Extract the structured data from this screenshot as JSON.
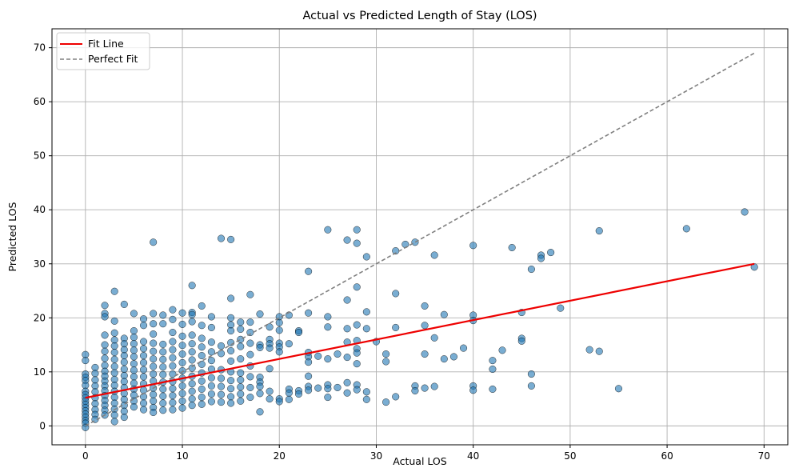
{
  "chart_data": {
    "type": "scatter",
    "title": "Actual vs Predicted Length of Stay (LOS)",
    "xlabel": "Actual LOS",
    "ylabel": "Predicted LOS",
    "xlim": [
      -3.45,
      72.45
    ],
    "ylim": [
      -3.5,
      73.5
    ],
    "xticks": [
      0,
      10,
      20,
      30,
      40,
      50,
      60,
      70
    ],
    "yticks": [
      0,
      10,
      20,
      30,
      40,
      50,
      60,
      70
    ],
    "grid": true,
    "legend_position": "top-left",
    "legend": [
      "Fit Line",
      "Perfect Fit"
    ],
    "colors": {
      "points": "#1f77b4",
      "fit_line": "#ee0000",
      "perfect_fit": "#808080",
      "grid": "#b0b0b0"
    },
    "fit_line": {
      "name": "Fit Line",
      "x": [
        0,
        69
      ],
      "y": [
        5.2,
        30.0
      ]
    },
    "perfect_fit": {
      "name": "Perfect Fit",
      "x": [
        0,
        69
      ],
      "y": [
        0,
        69
      ]
    },
    "points": [
      [
        0,
        13.2
      ],
      [
        0,
        12.1
      ],
      [
        0,
        9.6
      ],
      [
        0,
        9.0
      ],
      [
        0,
        8.4
      ],
      [
        0,
        7.5
      ],
      [
        0,
        6.4
      ],
      [
        0,
        5.8
      ],
      [
        0,
        5.2
      ],
      [
        0,
        4.6
      ],
      [
        0,
        4.0
      ],
      [
        0,
        3.4
      ],
      [
        0,
        2.8
      ],
      [
        0,
        2.2
      ],
      [
        0,
        1.6
      ],
      [
        0,
        1.0
      ],
      [
        0,
        0.5
      ],
      [
        0,
        -0.3
      ],
      [
        1,
        10.8
      ],
      [
        1,
        9.7
      ],
      [
        1,
        8.5
      ],
      [
        1,
        7.4
      ],
      [
        1,
        6.3
      ],
      [
        1,
        5.2
      ],
      [
        1,
        4.1
      ],
      [
        1,
        3.0
      ],
      [
        1,
        2.1
      ],
      [
        1,
        1.2
      ],
      [
        2,
        22.3
      ],
      [
        2,
        20.8
      ],
      [
        2,
        20.2
      ],
      [
        2,
        16.8
      ],
      [
        2,
        15.0
      ],
      [
        2,
        13.8
      ],
      [
        2,
        12.5
      ],
      [
        2,
        11.2
      ],
      [
        2,
        10.1
      ],
      [
        2,
        9.2
      ],
      [
        2,
        8.3
      ],
      [
        2,
        7.4
      ],
      [
        2,
        6.5
      ],
      [
        2,
        5.6
      ],
      [
        2,
        4.7
      ],
      [
        2,
        3.8
      ],
      [
        2,
        2.9
      ],
      [
        2,
        2.0
      ],
      [
        3,
        24.9
      ],
      [
        3,
        19.4
      ],
      [
        3,
        17.2
      ],
      [
        3,
        15.9
      ],
      [
        3,
        14.8
      ],
      [
        3,
        13.6
      ],
      [
        3,
        12.3
      ],
      [
        3,
        11.0
      ],
      [
        3,
        9.8
      ],
      [
        3,
        8.6
      ],
      [
        3,
        7.5
      ],
      [
        3,
        6.4
      ],
      [
        3,
        5.3
      ],
      [
        3,
        4.2
      ],
      [
        3,
        3.1
      ],
      [
        3,
        2.0
      ],
      [
        3,
        0.8
      ],
      [
        4,
        22.5
      ],
      [
        4,
        16.2
      ],
      [
        4,
        15.2
      ],
      [
        4,
        14.1
      ],
      [
        4,
        13.0
      ],
      [
        4,
        11.8
      ],
      [
        4,
        10.5
      ],
      [
        4,
        9.3
      ],
      [
        4,
        8.2
      ],
      [
        4,
        7.1
      ],
      [
        4,
        6.0
      ],
      [
        4,
        4.9
      ],
      [
        4,
        3.8
      ],
      [
        4,
        2.7
      ],
      [
        4,
        1.6
      ],
      [
        5,
        20.8
      ],
      [
        5,
        17.6
      ],
      [
        5,
        16.4
      ],
      [
        5,
        15.2
      ],
      [
        5,
        14.0
      ],
      [
        5,
        12.8
      ],
      [
        5,
        11.5
      ],
      [
        5,
        10.3
      ],
      [
        5,
        9.1
      ],
      [
        5,
        7.9
      ],
      [
        5,
        6.8
      ],
      [
        5,
        5.7
      ],
      [
        5,
        4.6
      ],
      [
        5,
        3.5
      ],
      [
        6,
        19.8
      ],
      [
        6,
        18.6
      ],
      [
        6,
        15.6
      ],
      [
        6,
        14.3
      ],
      [
        6,
        13.0
      ],
      [
        6,
        11.7
      ],
      [
        6,
        10.4
      ],
      [
        6,
        9.1
      ],
      [
        6,
        7.8
      ],
      [
        6,
        6.6
      ],
      [
        6,
        5.4
      ],
      [
        6,
        4.2
      ],
      [
        6,
        3.0
      ],
      [
        7,
        34.0
      ],
      [
        7,
        20.8
      ],
      [
        7,
        18.9
      ],
      [
        7,
        17.0
      ],
      [
        7,
        15.3
      ],
      [
        7,
        13.8
      ],
      [
        7,
        12.4
      ],
      [
        7,
        11.0
      ],
      [
        7,
        9.6
      ],
      [
        7,
        8.3
      ],
      [
        7,
        7.0
      ],
      [
        7,
        5.8
      ],
      [
        7,
        4.6
      ],
      [
        7,
        3.4
      ],
      [
        7,
        2.5
      ],
      [
        8,
        20.5
      ],
      [
        8,
        18.9
      ],
      [
        8,
        15.1
      ],
      [
        8,
        13.7
      ],
      [
        8,
        12.3
      ],
      [
        8,
        10.9
      ],
      [
        8,
        9.5
      ],
      [
        8,
        8.1
      ],
      [
        8,
        6.8
      ],
      [
        8,
        5.5
      ],
      [
        8,
        4.2
      ],
      [
        8,
        2.9
      ],
      [
        9,
        21.5
      ],
      [
        9,
        19.7
      ],
      [
        9,
        17.3
      ],
      [
        9,
        15.6
      ],
      [
        9,
        14.1
      ],
      [
        9,
        12.6
      ],
      [
        9,
        11.1
      ],
      [
        9,
        9.6
      ],
      [
        9,
        8.2
      ],
      [
        9,
        6.9
      ],
      [
        9,
        5.6
      ],
      [
        9,
        4.3
      ],
      [
        9,
        3.0
      ],
      [
        10,
        20.9
      ],
      [
        10,
        18.8
      ],
      [
        10,
        16.6
      ],
      [
        10,
        14.9
      ],
      [
        10,
        13.3
      ],
      [
        10,
        11.7
      ],
      [
        10,
        10.2
      ],
      [
        10,
        8.8
      ],
      [
        10,
        7.4
      ],
      [
        10,
        6.0
      ],
      [
        10,
        4.6
      ],
      [
        10,
        3.3
      ],
      [
        11,
        26.0
      ],
      [
        11,
        21.0
      ],
      [
        11,
        20.6
      ],
      [
        11,
        19.3
      ],
      [
        11,
        16.8
      ],
      [
        11,
        15.2
      ],
      [
        11,
        13.7
      ],
      [
        11,
        12.2
      ],
      [
        11,
        10.7
      ],
      [
        11,
        9.2
      ],
      [
        11,
        7.8
      ],
      [
        11,
        6.4
      ],
      [
        11,
        5.0
      ],
      [
        11,
        3.8
      ],
      [
        12,
        22.2
      ],
      [
        12,
        18.6
      ],
      [
        12,
        16.2
      ],
      [
        12,
        14.6
      ],
      [
        12,
        13.0
      ],
      [
        12,
        11.4
      ],
      [
        12,
        9.8
      ],
      [
        12,
        8.3
      ],
      [
        12,
        6.8
      ],
      [
        12,
        5.3
      ],
      [
        12,
        4.0
      ],
      [
        13,
        20.2
      ],
      [
        13,
        18.2
      ],
      [
        13,
        15.5
      ],
      [
        13,
        13.7
      ],
      [
        13,
        12.1
      ],
      [
        13,
        10.5
      ],
      [
        13,
        8.9
      ],
      [
        13,
        7.4
      ],
      [
        13,
        5.9
      ],
      [
        13,
        4.5
      ],
      [
        14,
        34.7
      ],
      [
        14,
        14.8
      ],
      [
        14,
        13.4
      ],
      [
        14,
        10.4
      ],
      [
        14,
        8.8
      ],
      [
        14,
        7.3
      ],
      [
        14,
        5.8
      ],
      [
        14,
        4.4
      ],
      [
        15,
        34.5
      ],
      [
        15,
        23.6
      ],
      [
        15,
        20.0
      ],
      [
        15,
        18.7
      ],
      [
        15,
        17.6
      ],
      [
        15,
        15.4
      ],
      [
        15,
        13.9
      ],
      [
        15,
        12.0
      ],
      [
        15,
        10.0
      ],
      [
        15,
        8.4
      ],
      [
        15,
        6.9
      ],
      [
        15,
        5.4
      ],
      [
        15,
        4.2
      ],
      [
        16,
        19.2
      ],
      [
        16,
        17.9
      ],
      [
        16,
        16.0
      ],
      [
        16,
        14.7
      ],
      [
        16,
        12.4
      ],
      [
        16,
        9.8
      ],
      [
        16,
        8.5
      ],
      [
        16,
        7.2
      ],
      [
        16,
        5.9
      ],
      [
        16,
        4.6
      ],
      [
        17,
        24.3
      ],
      [
        17,
        19.2
      ],
      [
        17,
        17.3
      ],
      [
        17,
        15.3
      ],
      [
        17,
        13.2
      ],
      [
        17,
        11.1
      ],
      [
        17,
        9.1
      ],
      [
        17,
        7.1
      ],
      [
        17,
        5.3
      ],
      [
        18,
        20.7
      ],
      [
        18,
        15.0
      ],
      [
        18,
        14.5
      ],
      [
        18,
        9.0
      ],
      [
        18,
        8.1
      ],
      [
        18,
        7.3
      ],
      [
        18,
        6.0
      ],
      [
        18,
        2.6
      ],
      [
        19,
        18.3
      ],
      [
        19,
        16.0
      ],
      [
        19,
        15.2
      ],
      [
        19,
        14.4
      ],
      [
        19,
        10.6
      ],
      [
        19,
        6.4
      ],
      [
        19,
        5.0
      ],
      [
        20,
        20.2
      ],
      [
        20,
        19.1
      ],
      [
        20,
        17.7
      ],
      [
        20,
        15.3
      ],
      [
        20,
        14.6
      ],
      [
        20,
        13.7
      ],
      [
        20,
        5.0
      ],
      [
        20,
        4.5
      ],
      [
        21,
        20.5
      ],
      [
        21,
        15.2
      ],
      [
        21,
        6.8
      ],
      [
        21,
        6.1
      ],
      [
        21,
        4.9
      ],
      [
        22,
        17.6
      ],
      [
        22,
        17.3
      ],
      [
        22,
        6.5
      ],
      [
        22,
        5.9
      ],
      [
        23,
        28.6
      ],
      [
        23,
        20.9
      ],
      [
        23,
        13.6
      ],
      [
        23,
        12.8
      ],
      [
        23,
        11.8
      ],
      [
        23,
        9.2
      ],
      [
        23,
        7.3
      ],
      [
        23,
        6.6
      ],
      [
        24,
        12.9
      ],
      [
        24,
        7.0
      ],
      [
        25,
        36.3
      ],
      [
        25,
        20.2
      ],
      [
        25,
        18.3
      ],
      [
        25,
        12.4
      ],
      [
        25,
        7.6
      ],
      [
        25,
        6.9
      ],
      [
        25,
        5.3
      ],
      [
        26,
        13.3
      ],
      [
        26,
        7.1
      ],
      [
        27,
        34.4
      ],
      [
        27,
        23.3
      ],
      [
        27,
        18.0
      ],
      [
        27,
        15.5
      ],
      [
        27,
        12.7
      ],
      [
        27,
        8.0
      ],
      [
        27,
        6.1
      ],
      [
        28,
        36.3
      ],
      [
        28,
        33.8
      ],
      [
        28,
        25.7
      ],
      [
        28,
        18.7
      ],
      [
        28,
        15.8
      ],
      [
        28,
        14.3
      ],
      [
        28,
        13.5
      ],
      [
        28,
        11.5
      ],
      [
        28,
        7.6
      ],
      [
        28,
        6.7
      ],
      [
        29,
        31.3
      ],
      [
        29,
        21.1
      ],
      [
        29,
        18.0
      ],
      [
        29,
        6.3
      ],
      [
        29,
        4.9
      ],
      [
        30,
        15.6
      ],
      [
        31,
        13.3
      ],
      [
        31,
        11.9
      ],
      [
        31,
        4.4
      ],
      [
        32,
        32.4
      ],
      [
        32,
        24.5
      ],
      [
        32,
        18.2
      ],
      [
        32,
        5.4
      ],
      [
        33,
        33.6
      ],
      [
        34,
        34.0
      ],
      [
        34,
        7.4
      ],
      [
        34,
        6.5
      ],
      [
        35,
        22.2
      ],
      [
        35,
        18.6
      ],
      [
        35,
        13.3
      ],
      [
        35,
        7.0
      ],
      [
        36,
        31.6
      ],
      [
        36,
        16.3
      ],
      [
        36,
        7.3
      ],
      [
        37,
        20.6
      ],
      [
        37,
        12.4
      ],
      [
        38,
        12.8
      ],
      [
        39,
        14.4
      ],
      [
        40,
        33.4
      ],
      [
        40,
        20.5
      ],
      [
        40,
        19.5
      ],
      [
        40,
        7.4
      ],
      [
        40,
        6.6
      ],
      [
        42,
        12.1
      ],
      [
        42,
        10.5
      ],
      [
        42,
        6.8
      ],
      [
        43,
        14.0
      ],
      [
        44,
        33.0
      ],
      [
        45,
        21.0
      ],
      [
        45,
        16.2
      ],
      [
        45,
        15.7
      ],
      [
        46,
        29.0
      ],
      [
        46,
        9.6
      ],
      [
        46,
        7.4
      ],
      [
        47,
        31.6
      ],
      [
        47,
        31.0
      ],
      [
        48,
        32.1
      ],
      [
        49,
        21.8
      ],
      [
        52,
        14.1
      ],
      [
        53,
        36.1
      ],
      [
        53,
        13.8
      ],
      [
        55,
        6.9
      ],
      [
        62,
        36.5
      ],
      [
        68,
        39.6
      ],
      [
        69,
        29.4
      ]
    ]
  }
}
